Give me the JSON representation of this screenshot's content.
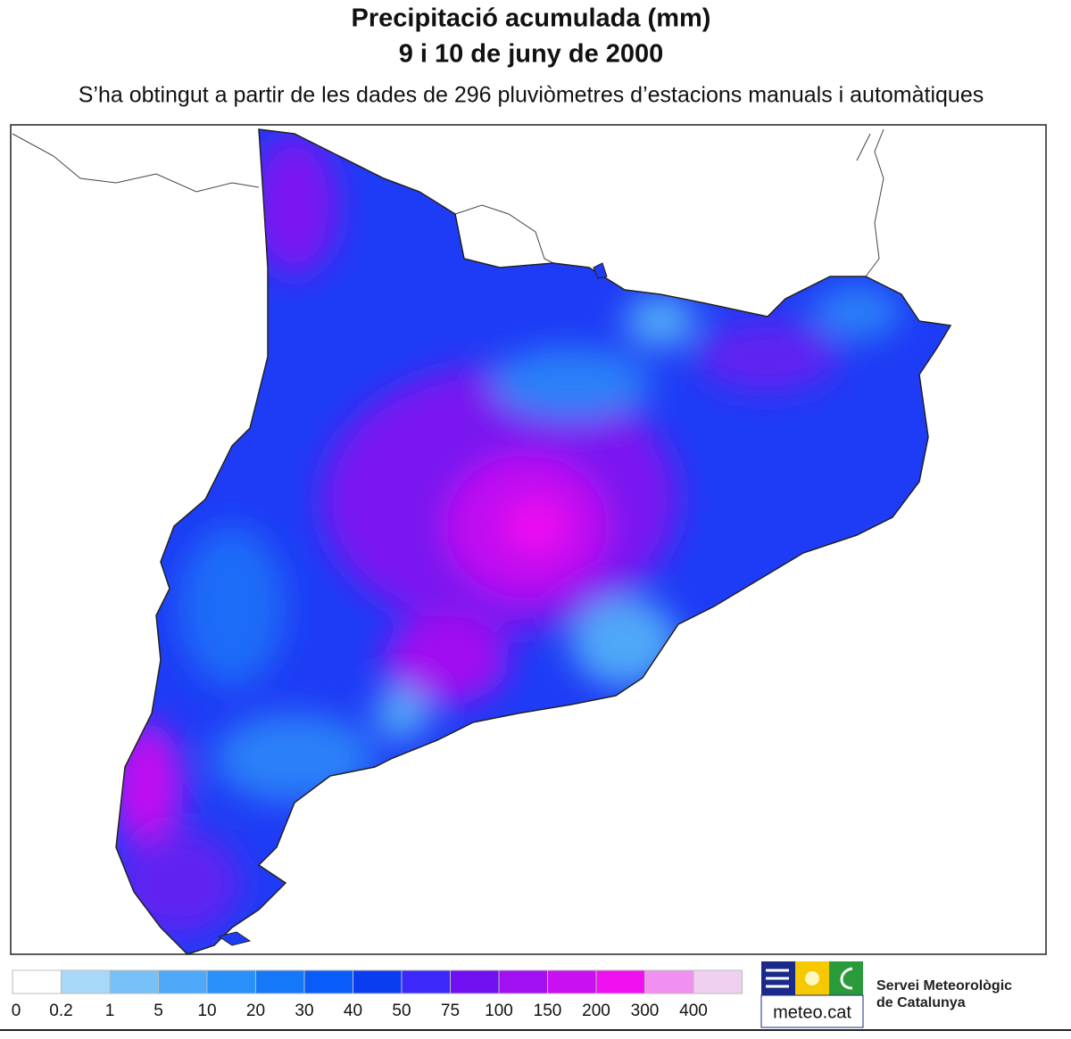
{
  "header": {
    "title": [
      "Precipitació acumulada (mm)",
      "9 i 10 de juny de 2000"
    ],
    "subtitle": "S’ha obtingut a partir de les dades de 296 pluviòmetres d’estacions manuals i automàtiques"
  },
  "legend": {
    "colors": [
      "#ffffff",
      "#a8d8f8",
      "#78c0f8",
      "#50a8f8",
      "#2890f8",
      "#1478f8",
      "#0a5cf8",
      "#0a3cf0",
      "#3c28f8",
      "#7010f0",
      "#a010f0",
      "#c810f0",
      "#f010f0",
      "#f090f0",
      "#f0d0f0"
    ],
    "labels": [
      0,
      0.2,
      1,
      5,
      10,
      20,
      30,
      40,
      50,
      75,
      100,
      150,
      200,
      300,
      400
    ]
  },
  "logo": {
    "brand": "meteo.cat",
    "org": [
      "Servei Meteorològic",
      "de Catalunya"
    ]
  }
}
